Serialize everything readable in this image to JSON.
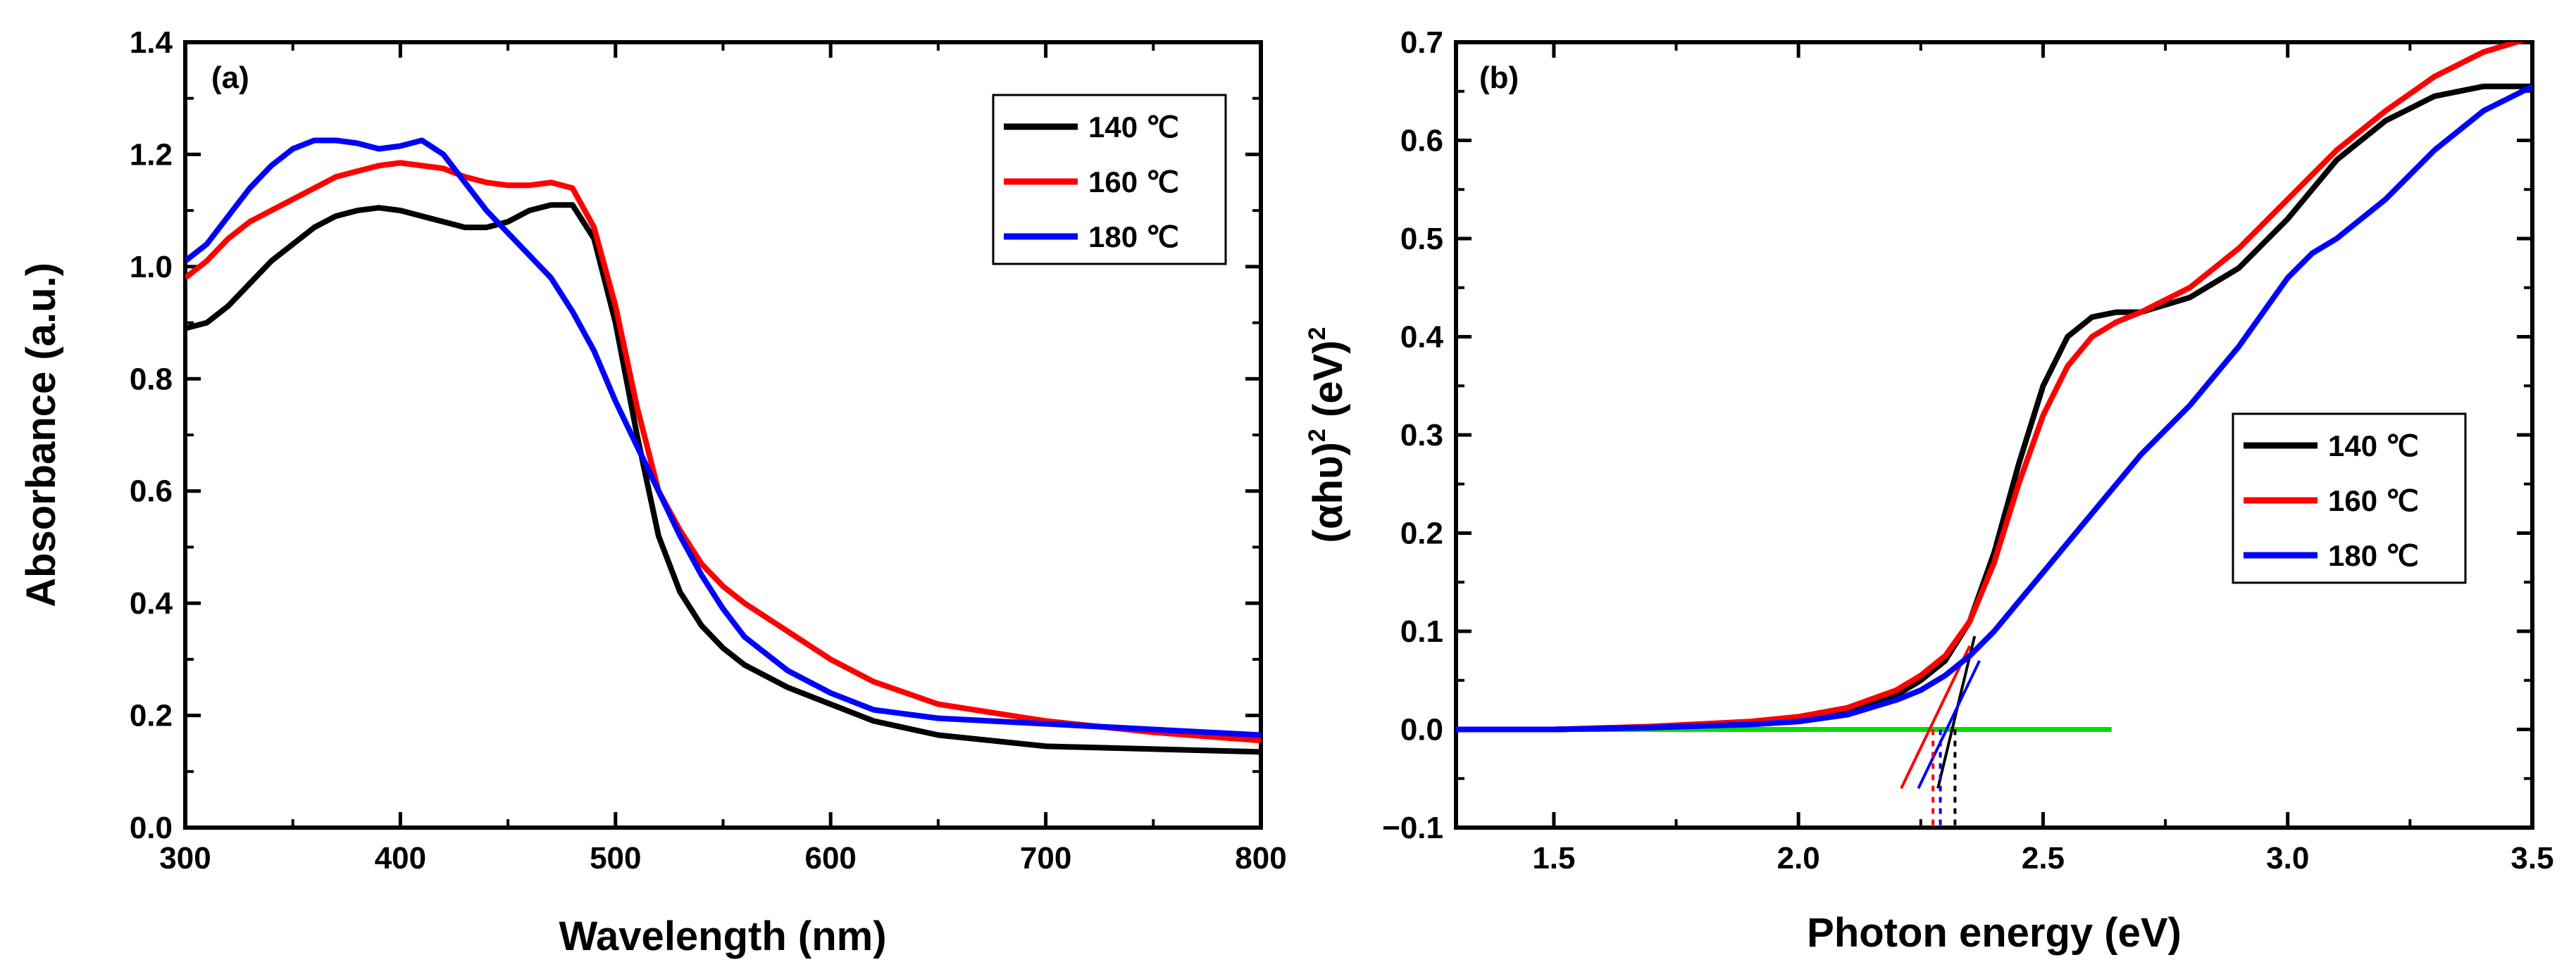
{
  "chart_data": [
    {
      "type": "line",
      "panel_label": "(a)",
      "xlabel": "Wavelength (nm)",
      "ylabel": "Absorbance (a.u.)",
      "xlim": [
        300,
        800
      ],
      "ylim": [
        0.0,
        1.4
      ],
      "xticks": [
        "300",
        "400",
        "500",
        "600",
        "700",
        "800"
      ],
      "yticks": [
        "0.0",
        "0.2",
        "0.4",
        "0.6",
        "0.8",
        "1.0",
        "1.2",
        "1.4"
      ],
      "legend_position": "top-right",
      "series": [
        {
          "name": "140 ℃",
          "color": "#000000",
          "x": [
            300,
            310,
            320,
            330,
            340,
            350,
            360,
            370,
            380,
            390,
            400,
            410,
            420,
            430,
            440,
            450,
            460,
            470,
            480,
            490,
            500,
            510,
            520,
            530,
            540,
            550,
            560,
            580,
            600,
            620,
            650,
            700,
            750,
            800
          ],
          "y": [
            0.89,
            0.9,
            0.93,
            0.97,
            1.01,
            1.04,
            1.07,
            1.09,
            1.1,
            1.105,
            1.1,
            1.09,
            1.08,
            1.07,
            1.07,
            1.08,
            1.1,
            1.11,
            1.11,
            1.05,
            0.9,
            0.7,
            0.52,
            0.42,
            0.36,
            0.32,
            0.29,
            0.25,
            0.22,
            0.19,
            0.165,
            0.145,
            0.14,
            0.135
          ]
        },
        {
          "name": "160 ℃",
          "color": "#ff0000",
          "x": [
            300,
            310,
            320,
            330,
            340,
            350,
            360,
            370,
            380,
            390,
            400,
            410,
            420,
            430,
            440,
            450,
            460,
            470,
            480,
            490,
            500,
            510,
            520,
            530,
            540,
            550,
            560,
            580,
            600,
            620,
            650,
            700,
            750,
            800
          ],
          "y": [
            0.98,
            1.01,
            1.05,
            1.08,
            1.1,
            1.12,
            1.14,
            1.16,
            1.17,
            1.18,
            1.185,
            1.18,
            1.175,
            1.16,
            1.15,
            1.145,
            1.145,
            1.15,
            1.14,
            1.07,
            0.93,
            0.75,
            0.6,
            0.53,
            0.47,
            0.43,
            0.4,
            0.35,
            0.3,
            0.26,
            0.22,
            0.19,
            0.17,
            0.155
          ]
        },
        {
          "name": "180 ℃",
          "color": "#0000ff",
          "x": [
            300,
            310,
            320,
            330,
            340,
            350,
            360,
            370,
            380,
            390,
            400,
            410,
            420,
            430,
            440,
            450,
            460,
            470,
            480,
            490,
            500,
            510,
            520,
            530,
            540,
            550,
            560,
            580,
            600,
            620,
            650,
            700,
            750,
            800
          ],
          "y": [
            1.01,
            1.04,
            1.09,
            1.14,
            1.18,
            1.21,
            1.225,
            1.225,
            1.22,
            1.21,
            1.215,
            1.225,
            1.2,
            1.15,
            1.1,
            1.06,
            1.02,
            0.98,
            0.92,
            0.85,
            0.76,
            0.68,
            0.6,
            0.52,
            0.45,
            0.39,
            0.34,
            0.28,
            0.24,
            0.21,
            0.195,
            0.185,
            0.175,
            0.165
          ]
        }
      ]
    },
    {
      "type": "line",
      "panel_label": "(b)",
      "xlabel": "Photon energy (eV)",
      "ylabel_parts": [
        "(αhυ)",
        "2",
        " (eV)",
        "2"
      ],
      "xlim": [
        1.3,
        3.5
      ],
      "ylim": [
        -0.1,
        0.7
      ],
      "xticks": [
        "1.5",
        "2.0",
        "2.5",
        "3.0",
        "3.5"
      ],
      "yticks": [
        "−0.1",
        "0.0",
        "0.1",
        "0.2",
        "0.3",
        "0.4",
        "0.5",
        "0.6",
        "0.7"
      ],
      "legend_position": "middle-right",
      "baseline": {
        "color": "#00dd00",
        "x": [
          1.3,
          2.64
        ],
        "y": [
          0.0,
          0.0
        ]
      },
      "series": [
        {
          "name": "140 ℃",
          "color": "#000000",
          "x": [
            1.3,
            1.5,
            1.7,
            1.9,
            2.0,
            2.1,
            2.2,
            2.25,
            2.3,
            2.35,
            2.4,
            2.45,
            2.5,
            2.55,
            2.6,
            2.65,
            2.7,
            2.8,
            2.9,
            3.0,
            3.1,
            3.2,
            3.3,
            3.4,
            3.5
          ],
          "y": [
            0.0,
            0.0,
            0.002,
            0.006,
            0.01,
            0.018,
            0.035,
            0.05,
            0.07,
            0.11,
            0.18,
            0.27,
            0.35,
            0.4,
            0.42,
            0.425,
            0.425,
            0.44,
            0.47,
            0.52,
            0.58,
            0.62,
            0.645,
            0.655,
            0.655
          ],
          "tangent": {
            "x": [
              2.285,
              2.36
            ],
            "y": [
              -0.06,
              0.095
            ]
          }
        },
        {
          "name": "160 ℃",
          "color": "#ff0000",
          "x": [
            1.3,
            1.5,
            1.7,
            1.9,
            2.0,
            2.1,
            2.2,
            2.25,
            2.3,
            2.35,
            2.4,
            2.45,
            2.5,
            2.55,
            2.6,
            2.65,
            2.7,
            2.8,
            2.9,
            3.0,
            3.1,
            3.2,
            3.3,
            3.4,
            3.5
          ],
          "y": [
            0.0,
            0.0,
            0.003,
            0.008,
            0.013,
            0.022,
            0.04,
            0.055,
            0.075,
            0.11,
            0.17,
            0.25,
            0.32,
            0.37,
            0.4,
            0.415,
            0.425,
            0.45,
            0.49,
            0.54,
            0.59,
            0.63,
            0.665,
            0.69,
            0.705
          ],
          "tangent": {
            "x": [
              2.21,
              2.35
            ],
            "y": [
              -0.06,
              0.085
            ]
          }
        },
        {
          "name": "180 ℃",
          "color": "#0000ff",
          "x": [
            1.3,
            1.5,
            1.7,
            1.9,
            2.0,
            2.1,
            2.2,
            2.25,
            2.3,
            2.35,
            2.4,
            2.45,
            2.5,
            2.55,
            2.6,
            2.7,
            2.8,
            2.9,
            3.0,
            3.05,
            3.1,
            3.2,
            3.3,
            3.4,
            3.5
          ],
          "y": [
            0.0,
            0.0,
            0.002,
            0.005,
            0.008,
            0.015,
            0.03,
            0.04,
            0.055,
            0.075,
            0.1,
            0.13,
            0.16,
            0.19,
            0.22,
            0.28,
            0.33,
            0.39,
            0.46,
            0.485,
            0.5,
            0.54,
            0.59,
            0.63,
            0.655
          ],
          "tangent": {
            "x": [
              2.245,
              2.37
            ],
            "y": [
              -0.06,
              0.07
            ]
          }
        }
      ],
      "dotted_drops": [
        {
          "color": "#000000",
          "x": 2.32
        },
        {
          "color": "#ff0000",
          "x": 2.275
        },
        {
          "color": "#0000ff",
          "x": 2.29
        }
      ]
    }
  ]
}
